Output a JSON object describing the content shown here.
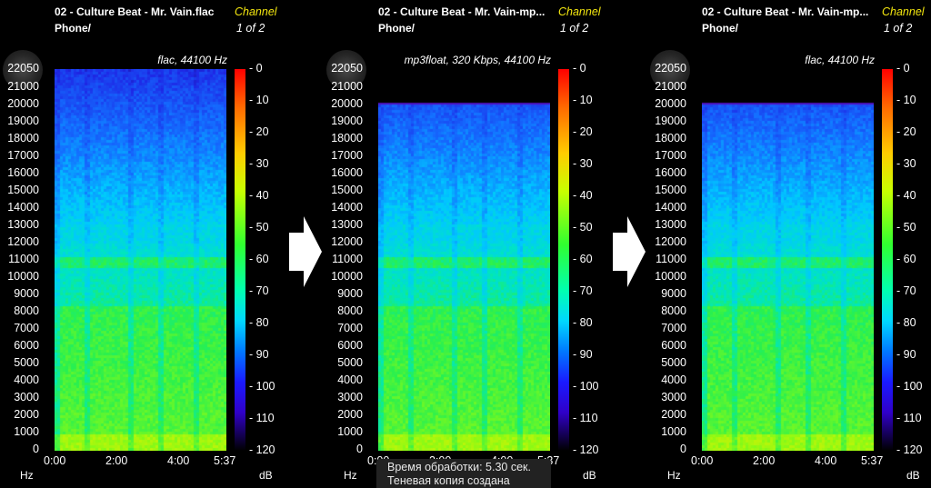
{
  "panels": [
    {
      "title": "02 - Culture Beat - Mr. Vain.flac",
      "path": "Phone/",
      "channel_label": "Channel",
      "channel_value": "1 of 2",
      "format": "flac, 44100 Hz",
      "cutoff": 22050
    },
    {
      "title": "02 - Culture Beat - Mr. Vain-mp...",
      "path": "Phone/",
      "channel_label": "Channel",
      "channel_value": "1 of 2",
      "format": "mp3float, 320 Kbps, 44100 Hz",
      "cutoff": 20100
    },
    {
      "title": "02 - Culture Beat - Mr. Vain-mp...",
      "path": "Phone/",
      "channel_label": "Channel",
      "channel_value": "1 of 2",
      "format": "flac, 44100 Hz",
      "cutoff": 20100
    }
  ],
  "y_ticks": [
    "22050",
    "21000",
    "20000",
    "19000",
    "18000",
    "17000",
    "16000",
    "15000",
    "14000",
    "13000",
    "12000",
    "11000",
    "10000",
    "9000",
    "8000",
    "7000",
    "6000",
    "5000",
    "4000",
    "3000",
    "2000",
    "1000",
    "0"
  ],
  "y_unit": "Hz",
  "x_ticks": [
    "0:00",
    "2:00",
    "4:00",
    "5:37"
  ],
  "colorbar_ticks": [
    "- 0",
    "- 10",
    "- 20",
    "- 30",
    "- 40",
    "- 50",
    "- 60",
    "- 70",
    "- 80",
    "- 90",
    "- 100",
    "- 110",
    "- 120"
  ],
  "colorbar_unit": "dB",
  "toast": {
    "line1": "Время обработки: 5.30 сек.",
    "line2": "Теневая копия создана"
  },
  "colors": {
    "channel_label": "#f3e60f",
    "background": "#000000"
  }
}
